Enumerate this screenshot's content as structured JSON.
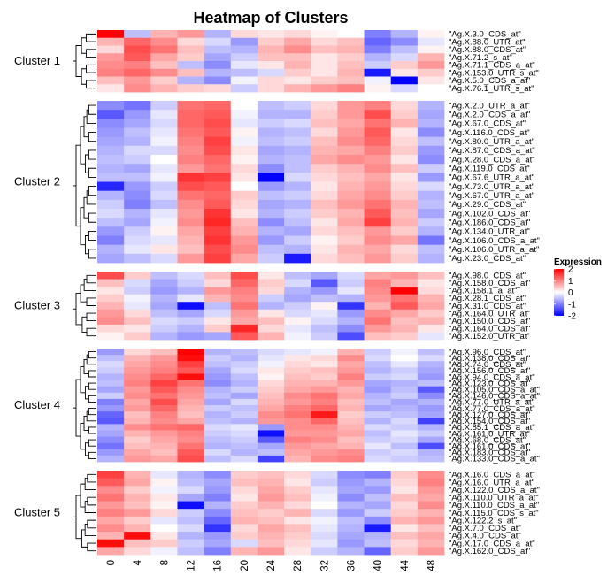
{
  "chart_data": {
    "type": "heatmap",
    "title": "Heatmap of Clusters",
    "columns": [
      "0",
      "4",
      "8",
      "12",
      "16",
      "20",
      "24",
      "28",
      "32",
      "36",
      "40",
      "44",
      "48"
    ],
    "legend": {
      "title": "Expression",
      "ticks": [
        2,
        1,
        0,
        -1,
        -2
      ],
      "range": [
        -2,
        2
      ],
      "colors": {
        "low": "#0000ff",
        "mid": "#ffffff",
        "high": "#ff0000"
      }
    },
    "clusters": [
      {
        "name": "Cluster 1",
        "rows": [
          "\"Ag.X.3.0_CDS_at\"",
          "\"Ag.X.88.0_UTR_at\"",
          "\"Ag.X.88.0_CDS_at\"",
          "\"Ag.X.71.2_s_at\"",
          "\"Ag.X.71.1_CDS_a_at\"",
          "\"Ag.X.153.0_UTR_s_at\"",
          "\"Ag.X.5.0_CDS_a_at\"",
          "\"Ag.X.76.1_UTR_s_at\""
        ],
        "values": [
          [
            2.0,
            -0.5,
            0.6,
            0.8,
            -0.6,
            0.3,
            0.2,
            0.3,
            0.1,
            0.0,
            -1.0,
            -0.6,
            0.1
          ],
          [
            0.6,
            1.2,
            0.9,
            0.3,
            -0.3,
            -0.8,
            0.4,
            0.7,
            0.3,
            0.5,
            -1.2,
            -0.9,
            -0.2
          ],
          [
            0.3,
            1.4,
            1.1,
            0.5,
            -0.5,
            -0.6,
            0.6,
            0.9,
            0.5,
            0.6,
            -1.0,
            -0.5,
            0.1
          ],
          [
            0.8,
            1.3,
            0.7,
            0.4,
            -0.7,
            -0.4,
            0.5,
            0.5,
            0.2,
            0.4,
            -0.6,
            -0.3,
            0.6
          ],
          [
            0.9,
            1.0,
            0.5,
            -0.5,
            -0.9,
            -0.2,
            0.2,
            0.6,
            0.2,
            0.5,
            -0.4,
            0.4,
            0.8
          ],
          [
            1.0,
            1.2,
            0.9,
            0.5,
            -0.6,
            -0.5,
            -0.3,
            0.4,
            0.2,
            0.6,
            -1.8,
            0.2,
            0.4
          ],
          [
            0.5,
            0.8,
            0.4,
            -0.6,
            -0.9,
            -0.1,
            0.3,
            0.2,
            0.4,
            0.5,
            -0.1,
            -2.0,
            0.2
          ],
          [
            0.2,
            0.9,
            0.6,
            0.4,
            0.3,
            -0.4,
            0.3,
            0.6,
            0.8,
            1.0,
            0.1,
            -0.3,
            0.0
          ]
        ]
      },
      {
        "name": "Cluster 2",
        "rows": [
          "\"Ag.X.2.0_UTR_a_at\"",
          "\"Ag.X.2.0_CDS_a_at\"",
          "\"Ag.X.67.0_CDS_at\"",
          "\"Ag.X.116.0_CDS_at\"",
          "\"Ag.X.80.0_UTR_a_at\"",
          "\"Ag.X.87.0_CDS_a_at\"",
          "\"Ag.X.28.0_CDS_a_at\"",
          "\"Ag.X.119.0_CDS_at\"",
          "\"Ag.X.67.6_UTR_a_at\"",
          "\"Ag.X.73.0_UTR_a_at\"",
          "\"Ag.X.67.0_UTR_a_at\"",
          "\"Ag.X.29.0_CDS_at\"",
          "\"Ag.X.102.0_CDS_at\"",
          "\"Ag.X.186.0_CDS_at\"",
          "\"Ag.X.134.0_UTR_at\"",
          "\"Ag.X.106.0_CDS_a_at\"",
          "\"Ag.X.106.0_UTR_a_at\"",
          "\"Ag.X.23.0_CDS_at\""
        ],
        "values": [
          [
            -0.9,
            -1.1,
            -0.4,
            1.1,
            1.2,
            0.0,
            -0.5,
            -0.4,
            0.3,
            0.8,
            1.0,
            0.3,
            -0.6
          ],
          [
            -1.3,
            -0.8,
            -0.2,
            1.2,
            1.3,
            -0.1,
            -0.6,
            -0.6,
            0.4,
            0.8,
            1.4,
            0.4,
            -0.7
          ],
          [
            -0.9,
            -0.7,
            -0.3,
            1.2,
            1.4,
            -0.2,
            -0.4,
            -0.3,
            0.5,
            0.7,
            1.1,
            0.6,
            -0.6
          ],
          [
            -0.8,
            -0.5,
            -0.2,
            1.1,
            1.3,
            0.1,
            -0.6,
            -0.5,
            0.3,
            0.8,
            1.3,
            0.2,
            -0.9
          ],
          [
            -0.7,
            -0.6,
            -0.1,
            1.0,
            1.5,
            -0.1,
            -0.5,
            -0.4,
            0.5,
            0.9,
            1.2,
            0.3,
            -0.5
          ],
          [
            -0.6,
            -0.3,
            -0.3,
            0.9,
            1.4,
            0.2,
            -0.7,
            -0.6,
            0.6,
            0.7,
            1.0,
            0.4,
            -0.8
          ],
          [
            -0.5,
            -0.4,
            0.0,
            1.0,
            1.2,
            0.1,
            -0.6,
            -0.5,
            0.7,
            0.9,
            0.8,
            0.2,
            -0.9
          ],
          [
            -0.6,
            -0.7,
            -0.2,
            0.8,
            1.1,
            0.3,
            -0.9,
            -0.5,
            0.4,
            0.6,
            0.9,
            0.5,
            -0.4
          ],
          [
            -0.5,
            -0.5,
            -0.1,
            1.6,
            1.5,
            0.2,
            -2.0,
            -0.3,
            0.3,
            0.5,
            0.7,
            0.2,
            -0.8
          ],
          [
            -1.7,
            -0.8,
            -0.4,
            1.4,
            1.3,
            0.0,
            -0.8,
            -0.6,
            0.2,
            0.6,
            0.8,
            0.3,
            -0.3
          ],
          [
            -0.6,
            -0.9,
            -0.3,
            1.1,
            1.2,
            0.4,
            -0.5,
            -0.4,
            0.3,
            0.7,
            0.9,
            0.4,
            -0.6
          ],
          [
            -0.4,
            -1.0,
            -0.5,
            0.9,
            1.3,
            0.3,
            -0.7,
            -0.6,
            0.5,
            0.8,
            1.1,
            0.6,
            -0.5
          ],
          [
            -0.3,
            -0.6,
            -0.2,
            0.8,
            1.6,
            0.2,
            -0.6,
            -0.4,
            0.4,
            0.6,
            1.3,
            0.5,
            -0.7
          ],
          [
            -0.5,
            -0.7,
            -0.1,
            0.9,
            1.7,
            0.5,
            -0.9,
            -0.5,
            0.2,
            0.7,
            1.5,
            0.6,
            -0.4
          ],
          [
            -0.8,
            -0.4,
            0.1,
            0.7,
            1.5,
            0.6,
            -0.6,
            -0.7,
            0.3,
            0.5,
            0.8,
            0.4,
            -0.6
          ],
          [
            -1.0,
            -0.3,
            -0.2,
            0.6,
            1.6,
            0.8,
            -0.8,
            -0.4,
            0.1,
            0.4,
            0.9,
            0.7,
            -1.1
          ],
          [
            -0.6,
            -0.2,
            0.2,
            0.5,
            1.4,
            0.9,
            -0.5,
            -0.6,
            0.2,
            0.6,
            0.7,
            0.3,
            -0.5
          ],
          [
            -0.7,
            -0.5,
            -0.3,
            0.8,
            1.5,
            0.7,
            -0.4,
            -1.8,
            0.3,
            0.5,
            0.8,
            0.4,
            -0.6
          ]
        ]
      },
      {
        "name": "Cluster 3",
        "rows": [
          "\"Ag.X.98.0_CDS_at\"",
          "\"Ag.X.158.0_CDS_at\"",
          "\"Ag.X.158.1_a_at\"",
          "\"Ag.X.28.1_CDS_at\"",
          "\"Ag.X.31.0_CDS_at\"",
          "\"Ag.X.164.0_UTR_at\"",
          "\"Ag.X.150.0_CDS_at\"",
          "\"Ag.X.164.0_CDS_at\"",
          "\"Ag.X.152.0_UTR_at\""
        ],
        "values": [
          [
            1.4,
            0.4,
            -0.5,
            -0.3,
            0.5,
            1.4,
            0.2,
            -0.5,
            -0.7,
            -0.3,
            0.7,
            0.8,
            0.5
          ],
          [
            0.5,
            -0.3,
            -0.7,
            -0.4,
            0.3,
            1.2,
            0.4,
            -0.3,
            -1.3,
            -0.4,
            1.0,
            0.6,
            0.2
          ],
          [
            0.2,
            -0.4,
            -0.8,
            -0.6,
            0.8,
            1.0,
            0.3,
            -0.6,
            -0.8,
            -0.2,
            0.9,
            2.0,
            0.3
          ],
          [
            0.4,
            -0.1,
            -0.6,
            -0.2,
            0.6,
            0.9,
            -0.4,
            -0.7,
            -0.5,
            -0.6,
            0.8,
            1.1,
            0.6
          ],
          [
            0.6,
            -0.2,
            -0.7,
            -1.9,
            -0.5,
            1.1,
            -0.6,
            -0.4,
            0.1,
            -1.6,
            0.6,
            1.3,
            0.7
          ],
          [
            0.8,
            0.3,
            -0.5,
            -0.7,
            -0.3,
            0.8,
            0.2,
            -0.3,
            -0.2,
            -0.8,
            0.9,
            0.7,
            0.4
          ],
          [
            0.9,
            0.5,
            -0.3,
            -0.4,
            0.2,
            0.7,
            0.5,
            0.1,
            -0.3,
            -0.6,
            1.1,
            0.5,
            0.6
          ],
          [
            0.3,
            0.2,
            -0.4,
            -0.6,
            0.4,
            1.7,
            0.3,
            -0.2,
            -0.5,
            -0.9,
            0.8,
            0.6,
            0.2
          ],
          [
            0.1,
            0.4,
            -0.6,
            -0.8,
            -0.7,
            1.3,
            0.6,
            -0.1,
            -0.4,
            -1.4,
            0.5,
            0.4,
            -0.2
          ]
        ]
      },
      {
        "name": "Cluster 4",
        "rows": [
          "\"Ag.X.96.0_CDS_at\"",
          "\"Ag.X.138.0_CDS_at\"",
          "\"Ag.X.74.0_CDS_at\"",
          "\"Ag.X.156.0_CDS_at\"",
          "\"Ag.X.94.0_CDS_a_at\"",
          "\"Ag.X.123.0_CDS_at\"",
          "\"Ag.X.105.0_CDS_a_at\"",
          "\"Ag.X.146.0_CDS_a_at\"",
          "\"Ag.X.77.0_UTR_a_at\"",
          "\"Ag.X.77.0_CDS_a_at\"",
          "\"Ag.X.127.0_CDS_at\"",
          "\"Ag.X.154.0_CDS_at\"",
          "\"Ag.X.85.1_CDS_a_at\"",
          "\"Ag.X.161.0_UTR_at\"",
          "\"Ag.X.68.0_CDS_at\"",
          "\"Ag.X.161.0_CDS_at\"",
          "\"Ag.X.183.0_CDS_at\"",
          "\"Ag.X.133.0_CDS_a_at\""
        ],
        "values": [
          [
            -0.8,
            0.3,
            0.5,
            2.0,
            -0.6,
            -0.5,
            -0.3,
            -0.2,
            -0.1,
            0.6,
            -0.4,
            -0.1,
            -0.5
          ],
          [
            -0.5,
            0.6,
            0.8,
            1.9,
            -0.4,
            -0.6,
            -0.2,
            0.2,
            0.3,
            0.9,
            -0.3,
            0.0,
            -0.3
          ],
          [
            -0.3,
            0.7,
            0.9,
            1.5,
            -0.5,
            -0.4,
            -0.1,
            0.3,
            0.2,
            0.7,
            -0.5,
            -0.2,
            -0.6
          ],
          [
            -0.4,
            0.8,
            1.0,
            1.3,
            -0.7,
            -0.3,
            0.2,
            0.4,
            0.5,
            0.8,
            -0.6,
            -0.4,
            -0.7
          ],
          [
            -0.6,
            0.9,
            1.2,
            1.9,
            -0.8,
            -0.5,
            0.1,
            0.5,
            0.4,
            1.0,
            -0.4,
            -0.3,
            -0.8
          ],
          [
            -0.5,
            1.0,
            1.5,
            1.1,
            -0.9,
            -0.6,
            0.3,
            0.6,
            0.6,
            0.8,
            -0.7,
            -0.6,
            -0.5
          ],
          [
            -0.7,
            0.8,
            1.3,
            0.9,
            -0.6,
            -0.4,
            0.4,
            0.7,
            0.8,
            0.6,
            -0.8,
            -0.5,
            -1.3
          ],
          [
            -0.4,
            0.9,
            1.1,
            0.8,
            -0.5,
            -0.7,
            0.5,
            0.9,
            1.1,
            0.7,
            -0.6,
            -0.4,
            -0.9
          ],
          [
            -1.0,
            0.7,
            1.4,
            0.7,
            -0.7,
            -0.3,
            0.6,
            0.8,
            1.0,
            0.5,
            -0.5,
            -0.7,
            -0.6
          ],
          [
            -0.8,
            0.8,
            1.2,
            0.6,
            -0.4,
            -0.5,
            0.7,
            1.0,
            1.2,
            0.6,
            -0.7,
            -0.6,
            -0.8
          ],
          [
            -1.2,
            0.5,
            1.0,
            0.5,
            -0.6,
            -0.4,
            0.9,
            1.1,
            1.8,
            0.4,
            -0.4,
            -0.5,
            -0.7
          ],
          [
            -1.3,
            0.6,
            0.9,
            0.7,
            -0.5,
            -0.6,
            0.8,
            0.9,
            1.2,
            0.5,
            -0.6,
            -0.3,
            -1.5
          ],
          [
            -0.6,
            0.9,
            1.1,
            1.2,
            -0.3,
            -0.2,
            -0.8,
            0.9,
            0.9,
            0.6,
            -0.3,
            -0.4,
            -0.6
          ],
          [
            -0.7,
            0.6,
            0.8,
            1.0,
            -0.4,
            -0.3,
            -1.9,
            0.8,
            0.8,
            0.7,
            -0.5,
            -0.2,
            -0.4
          ],
          [
            -0.9,
            0.4,
            0.7,
            0.9,
            -0.5,
            -0.4,
            -1.3,
            1.0,
            0.9,
            0.5,
            -0.4,
            -0.3,
            -0.7
          ],
          [
            -1.1,
            0.5,
            0.6,
            1.1,
            -0.6,
            -0.5,
            -0.7,
            0.8,
            0.7,
            0.6,
            -0.2,
            -0.5,
            -1.4
          ],
          [
            -0.8,
            0.7,
            0.5,
            1.3,
            -0.3,
            -0.6,
            -0.5,
            0.7,
            0.8,
            0.9,
            -0.4,
            -0.3,
            -0.6
          ],
          [
            -0.6,
            0.8,
            0.7,
            1.4,
            -0.5,
            -0.3,
            -1.5,
            0.6,
            0.9,
            1.0,
            -0.3,
            -0.4,
            -0.5
          ]
        ]
      },
      {
        "name": "Cluster 5",
        "rows": [
          "\"Ag.X.16.0_CDS_a_at\"",
          "\"Ag.X.16.0_UTR_a_at\"",
          "\"Ag.X.122.0_CDS_a_at\"",
          "\"Ag.X.110.0_UTR_a_at\"",
          "\"Ag.X.110.0_CDS_a_at\"",
          "\"Ag.X.115.0_CDS_s_at\"",
          "\"Ag.X.122.2_s_at\"",
          "\"Ag.X.7.0_CDS_at\"",
          "\"Ag.X.4.0_CDS_at\"",
          "\"Ag.X.17.0_CDS_a_at\"",
          "\"Ag.X.162.0_CDS_at\""
        ],
        "values": [
          [
            1.5,
            0.6,
            -0.2,
            -0.6,
            -0.9,
            0.4,
            0.5,
            0.3,
            -0.3,
            -0.9,
            -1.0,
            0.4,
            0.9
          ],
          [
            1.3,
            0.7,
            0.1,
            -0.5,
            -0.7,
            0.5,
            0.6,
            0.2,
            -0.4,
            -0.8,
            -0.6,
            0.3,
            1.0
          ],
          [
            0.9,
            0.4,
            -0.1,
            -0.3,
            -0.8,
            0.3,
            0.7,
            0.4,
            -0.2,
            -0.7,
            -0.8,
            0.2,
            0.8
          ],
          [
            1.1,
            0.6,
            0.2,
            -0.7,
            -1.0,
            0.2,
            0.8,
            0.5,
            -0.1,
            -0.9,
            -0.5,
            0.5,
            0.7
          ],
          [
            0.8,
            0.5,
            0.1,
            -1.9,
            -0.6,
            0.4,
            0.6,
            0.3,
            0.0,
            -0.6,
            -0.7,
            0.3,
            0.9
          ],
          [
            1.0,
            0.8,
            0.3,
            -0.4,
            -0.9,
            0.5,
            0.4,
            0.6,
            -0.3,
            -0.8,
            -0.4,
            0.4,
            0.6
          ],
          [
            0.7,
            0.4,
            -0.2,
            -0.5,
            -1.2,
            0.6,
            0.5,
            0.2,
            -0.1,
            -0.5,
            -0.9,
            0.6,
            0.8
          ],
          [
            0.9,
            0.6,
            0.0,
            -0.3,
            -1.6,
            0.3,
            0.7,
            0.5,
            -0.2,
            -0.6,
            -1.8,
            0.2,
            0.5
          ],
          [
            0.6,
            1.9,
            0.2,
            -0.6,
            -0.8,
            0.4,
            0.6,
            0.4,
            -0.3,
            -0.7,
            -0.6,
            0.5,
            0.7
          ],
          [
            1.9,
            0.5,
            0.4,
            -0.4,
            -0.7,
            -0.3,
            0.5,
            0.3,
            -0.2,
            -0.8,
            -0.5,
            0.3,
            0.6
          ],
          [
            0.7,
            0.3,
            -0.1,
            -0.5,
            -1.0,
            0.6,
            0.8,
            0.2,
            -0.4,
            -0.6,
            -1.2,
            0.4,
            0.8
          ]
        ]
      }
    ]
  }
}
